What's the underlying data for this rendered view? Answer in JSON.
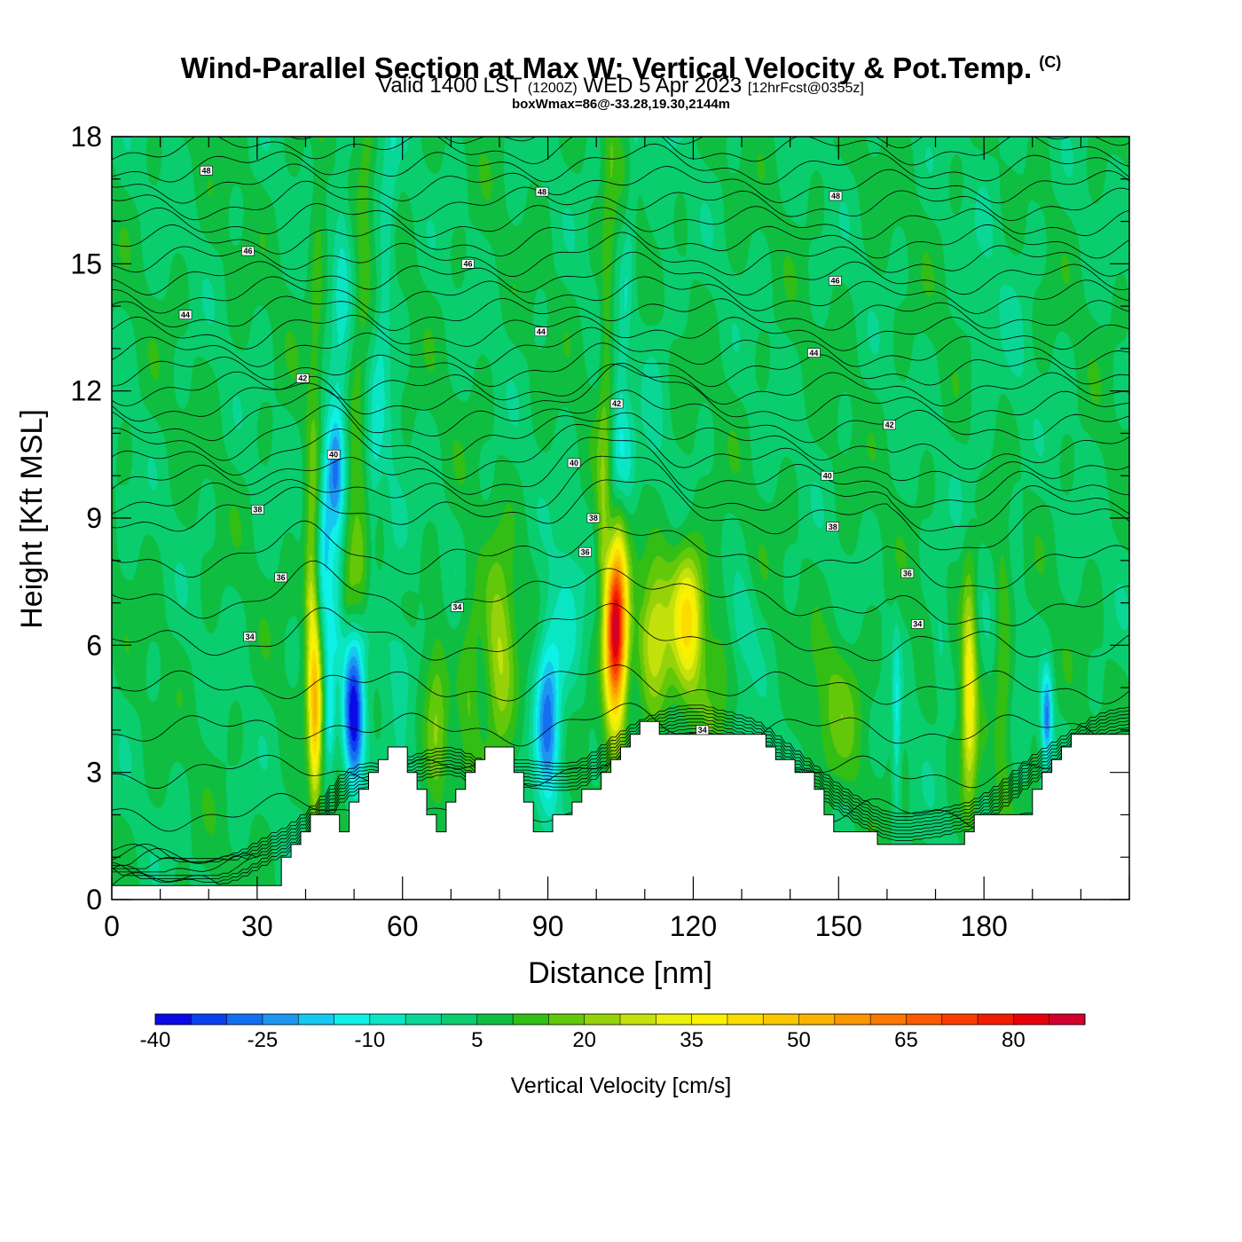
{
  "title": {
    "main": "Wind-Parallel Section at Max W: Vertical Velocity & Pot.Temp.",
    "copyright": "(C)",
    "valid_prefix": "Valid 1400 LST",
    "valid_z": "(1200Z)",
    "valid_date": "WED 5 Apr 2023",
    "forecast": "[12hrFcst@0355z]",
    "box_info": "boxWmax=86@-33.28,19.30,2144m"
  },
  "chart_data": {
    "type": "heatmap",
    "xlabel": "Distance [nm]",
    "ylabel": "Height [Kft MSL]",
    "xlim": [
      0,
      210
    ],
    "ylim": [
      0,
      18
    ],
    "xticks": [
      0,
      30,
      60,
      90,
      120,
      150,
      180
    ],
    "yticks": [
      0,
      3,
      6,
      9,
      12,
      15,
      18
    ],
    "colorbar": {
      "title": "Vertical Velocity [cm/s]",
      "levels": [
        -40,
        -35,
        -30,
        -25,
        -20,
        -15,
        -10,
        -5,
        0,
        5,
        10,
        15,
        20,
        25,
        30,
        35,
        40,
        45,
        50,
        55,
        60,
        65,
        70,
        75,
        80,
        85,
        90
      ],
      "colors": [
        "#0a0ae6",
        "#0a40f0",
        "#1470f0",
        "#1e96f0",
        "#14c8f0",
        "#0ff0e6",
        "#0ae6c3",
        "#0ad796",
        "#0acd6e",
        "#0fbe41",
        "#32be14",
        "#64c80a",
        "#96d20a",
        "#c3e10a",
        "#ebf00a",
        "#faf000",
        "#fadc00",
        "#fac800",
        "#fab400",
        "#fa9600",
        "#fa7800",
        "#fa5a00",
        "#fa3c00",
        "#f01e00",
        "#e6000a",
        "#d2002d"
      ],
      "tick_labels": [
        "-40",
        "-25",
        "-10",
        "5",
        "20",
        "35",
        "50",
        "65",
        "80"
      ]
    },
    "background_w": 5,
    "terrain_kft": [
      [
        0,
        0.33
      ],
      [
        35,
        0.33
      ],
      [
        35,
        1.0
      ],
      [
        37,
        1.0
      ],
      [
        37,
        1.3
      ],
      [
        39,
        1.3
      ],
      [
        39,
        1.6
      ],
      [
        41,
        1.6
      ],
      [
        41,
        2.0
      ],
      [
        47,
        2.0
      ],
      [
        47,
        1.6
      ],
      [
        49,
        1.6
      ],
      [
        49,
        2.3
      ],
      [
        51,
        2.3
      ],
      [
        51,
        2.6
      ],
      [
        53,
        2.6
      ],
      [
        53,
        3.0
      ],
      [
        55,
        3.0
      ],
      [
        55,
        3.3
      ],
      [
        57,
        3.3
      ],
      [
        57,
        3.6
      ],
      [
        61,
        3.6
      ],
      [
        61,
        3.0
      ],
      [
        63,
        3.0
      ],
      [
        63,
        2.6
      ],
      [
        65,
        2.6
      ],
      [
        65,
        2.0
      ],
      [
        67,
        2.0
      ],
      [
        67,
        1.6
      ],
      [
        69,
        1.6
      ],
      [
        69,
        2.3
      ],
      [
        71,
        2.3
      ],
      [
        71,
        2.6
      ],
      [
        73,
        2.6
      ],
      [
        73,
        3.0
      ],
      [
        75,
        3.0
      ],
      [
        75,
        3.3
      ],
      [
        77,
        3.3
      ],
      [
        77,
        3.6
      ],
      [
        83,
        3.6
      ],
      [
        83,
        3.0
      ],
      [
        85,
        3.0
      ],
      [
        85,
        2.3
      ],
      [
        87,
        2.3
      ],
      [
        87,
        1.6
      ],
      [
        91,
        1.6
      ],
      [
        91,
        2.0
      ],
      [
        95,
        2.0
      ],
      [
        95,
        2.3
      ],
      [
        97,
        2.3
      ],
      [
        97,
        2.6
      ],
      [
        101,
        2.6
      ],
      [
        101,
        3.0
      ],
      [
        103,
        3.0
      ],
      [
        103,
        3.3
      ],
      [
        105,
        3.3
      ],
      [
        105,
        3.6
      ],
      [
        107,
        3.6
      ],
      [
        107,
        3.9
      ],
      [
        109,
        3.9
      ],
      [
        109,
        4.2
      ],
      [
        113,
        4.2
      ],
      [
        113,
        3.9
      ],
      [
        135,
        3.9
      ],
      [
        135,
        3.6
      ],
      [
        137,
        3.6
      ],
      [
        137,
        3.3
      ],
      [
        141,
        3.3
      ],
      [
        141,
        3.0
      ],
      [
        145,
        3.0
      ],
      [
        145,
        2.6
      ],
      [
        147,
        2.6
      ],
      [
        147,
        2.0
      ],
      [
        149,
        2.0
      ],
      [
        149,
        1.6
      ],
      [
        151,
        1.6
      ],
      [
        151,
        1.6
      ],
      [
        158,
        1.6
      ],
      [
        158,
        1.3
      ],
      [
        176,
        1.3
      ],
      [
        176,
        1.6
      ],
      [
        178,
        1.6
      ],
      [
        178,
        2.0
      ],
      [
        190,
        2.0
      ],
      [
        190,
        2.6
      ],
      [
        192,
        2.6
      ],
      [
        192,
        3.0
      ],
      [
        194,
        3.0
      ],
      [
        194,
        3.3
      ],
      [
        196,
        3.3
      ],
      [
        196,
        3.6
      ],
      [
        198,
        3.6
      ],
      [
        198,
        3.9
      ],
      [
        210,
        3.9
      ]
    ],
    "w_features": [
      {
        "x": 104,
        "z": 6.3,
        "sx": 1.6,
        "sz": 1.5,
        "w": 86
      },
      {
        "x": 112,
        "z": 6.4,
        "sx": 2.4,
        "sz": 1.4,
        "w": 24
      },
      {
        "x": 119,
        "z": 6.6,
        "sx": 2.2,
        "sz": 1.2,
        "w": 36
      },
      {
        "x": 80,
        "z": 5.6,
        "sx": 2.2,
        "sz": 1.6,
        "w": 22
      },
      {
        "x": 42,
        "z": 4.4,
        "sx": 0.9,
        "sz": 1.6,
        "w": 40
      },
      {
        "x": 41,
        "z": 6.5,
        "sx": 0.9,
        "sz": 1.8,
        "w": 14
      },
      {
        "x": 52,
        "z": 7.4,
        "sx": 1.2,
        "sz": 1.2,
        "w": 14
      },
      {
        "x": 177,
        "z": 5.0,
        "sx": 1.1,
        "sz": 2.0,
        "w": 30
      },
      {
        "x": 184,
        "z": 6.0,
        "sx": 1.2,
        "sz": 2.5,
        "w": 12
      },
      {
        "x": 150,
        "z": 4.6,
        "sx": 4,
        "sz": 1.2,
        "w": 10
      },
      {
        "x": 67,
        "z": 4.5,
        "sx": 1.5,
        "sz": 1.6,
        "w": 12
      },
      {
        "x": 74,
        "z": 5.0,
        "sx": 1.5,
        "sz": 2.0,
        "w": 10
      },
      {
        "x": 125,
        "z": 5.5,
        "sx": 2.2,
        "sz": 1.6,
        "w": 8
      },
      {
        "x": 50,
        "z": 4.3,
        "sx": 1.5,
        "sz": 1.3,
        "w": -42
      },
      {
        "x": 45,
        "z": 4.5,
        "sx": 0.8,
        "sz": 1.0,
        "w": -20
      },
      {
        "x": 90,
        "z": 4.3,
        "sx": 1.8,
        "sz": 1.5,
        "w": -32
      },
      {
        "x": 94,
        "z": 6.5,
        "sx": 2.2,
        "sz": 1.5,
        "w": -10
      },
      {
        "x": 46,
        "z": 10.2,
        "sx": 1.3,
        "sz": 1.0,
        "w": -24
      },
      {
        "x": 44,
        "z": 8.8,
        "sx": 1.0,
        "sz": 1.6,
        "w": -16
      },
      {
        "x": 106,
        "z": 10.5,
        "sx": 1.3,
        "sz": 1.0,
        "w": -12
      },
      {
        "x": 193,
        "z": 4.3,
        "sx": 0.8,
        "sz": 0.8,
        "w": -30
      },
      {
        "x": 162,
        "z": 4.0,
        "sx": 0.6,
        "sz": 1.5,
        "w": -14
      },
      {
        "x": 171,
        "z": 6.0,
        "sx": 1.2,
        "sz": 1.0,
        "w": -8
      },
      {
        "x": 130,
        "z": 6.5,
        "sx": 2.0,
        "sz": 0.8,
        "w": -8
      },
      {
        "x": 60,
        "z": 5.5,
        "sx": 2.0,
        "sz": 0.8,
        "w": -10
      }
    ],
    "w_streaks": [
      {
        "x0": 46,
        "x1": 48,
        "z0": 6.0,
        "z1": 18.0,
        "s": 1.3,
        "w": -11
      },
      {
        "x0": 52,
        "x1": 58,
        "z0": 6.0,
        "z1": 18.0,
        "s": 1.1,
        "w": -9
      },
      {
        "x0": 103,
        "x1": 108,
        "z0": 8.0,
        "z1": 18.0,
        "s": 0.9,
        "w": -9
      },
      {
        "x0": 41,
        "x1": 43,
        "z0": 7.0,
        "z1": 18.0,
        "s": 1.1,
        "w": 9
      },
      {
        "x0": 49,
        "x1": 53,
        "z0": 7.0,
        "z1": 18.0,
        "s": 1.2,
        "w": 9
      },
      {
        "x0": 101,
        "x1": 103,
        "z0": 8.0,
        "z1": 18.0,
        "s": 1.0,
        "w": 11
      },
      {
        "x0": 58,
        "x1": 56,
        "z0": 6.0,
        "z1": 18.0,
        "s": 2.0,
        "w": -4
      },
      {
        "x0": 110,
        "x1": 115,
        "z0": 7.0,
        "z1": 18.0,
        "s": 2.0,
        "w": -4
      },
      {
        "x0": 185,
        "x1": 188,
        "z0": 6.0,
        "z1": 18.0,
        "s": 2.5,
        "w": -3
      },
      {
        "x0": 178,
        "x1": 182,
        "z0": 9.0,
        "z1": 18.0,
        "s": 2.5,
        "w": -3
      }
    ],
    "theta_levels": [
      34,
      35,
      36,
      37,
      38,
      39,
      40,
      41,
      42,
      43,
      44,
      45,
      46,
      47,
      48,
      49
    ],
    "theta_labels": [
      {
        "text": "48",
        "x": 19.5,
        "z": 17.2
      },
      {
        "text": "48",
        "x": 88.8,
        "z": 16.7
      },
      {
        "text": "48",
        "x": 149.4,
        "z": 16.6
      },
      {
        "text": "46",
        "x": 28.1,
        "z": 15.3
      },
      {
        "text": "46",
        "x": 73.5,
        "z": 15.0
      },
      {
        "text": "46",
        "x": 149.3,
        "z": 14.6
      },
      {
        "text": "44",
        "x": 15.2,
        "z": 13.8
      },
      {
        "text": "44",
        "x": 88.6,
        "z": 13.4
      },
      {
        "text": "44",
        "x": 144.9,
        "z": 12.9
      },
      {
        "text": "42",
        "x": 39.4,
        "z": 12.3
      },
      {
        "text": "42",
        "x": 104.2,
        "z": 11.7
      },
      {
        "text": "42",
        "x": 160.5,
        "z": 11.2
      },
      {
        "text": "40",
        "x": 45.8,
        "z": 10.5
      },
      {
        "text": "40",
        "x": 95.4,
        "z": 10.3
      },
      {
        "text": "40",
        "x": 147.7,
        "z": 10.0
      },
      {
        "text": "38",
        "x": 30.1,
        "z": 9.2
      },
      {
        "text": "38",
        "x": 99.4,
        "z": 9.0
      },
      {
        "text": "38",
        "x": 148.8,
        "z": 8.8
      },
      {
        "text": "36",
        "x": 34.9,
        "z": 7.6
      },
      {
        "text": "36",
        "x": 97.7,
        "z": 8.2
      },
      {
        "text": "36",
        "x": 164.2,
        "z": 7.7
      },
      {
        "text": "34",
        "x": 28.5,
        "z": 6.2
      },
      {
        "text": "34",
        "x": 71.3,
        "z": 6.9
      },
      {
        "text": "34",
        "x": 166.3,
        "z": 6.5
      },
      {
        "text": "34",
        "x": 121.9,
        "z": 4.0
      }
    ]
  }
}
